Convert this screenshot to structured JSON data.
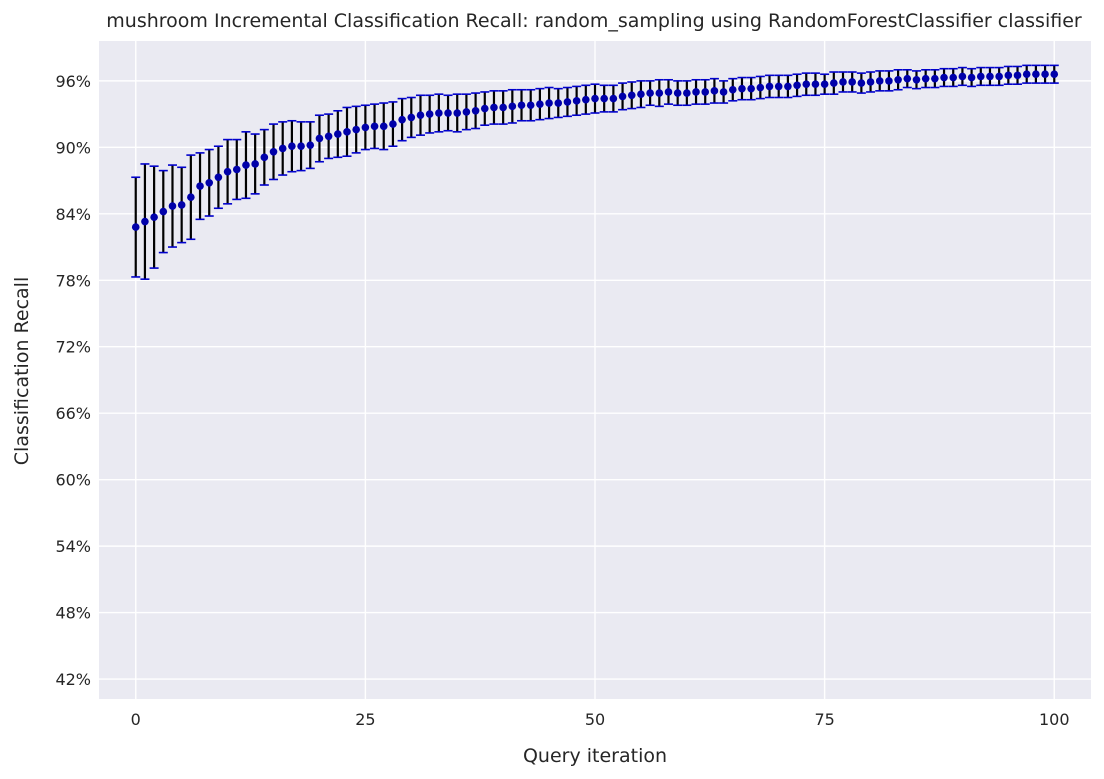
{
  "chart_data": {
    "type": "scatter",
    "title": "mushroom Incremental Classification Recall: random_sampling using RandomForestClassifier classifier",
    "xlabel": "Query iteration",
    "ylabel": "Classification Recall",
    "xlim": [
      -4,
      104
    ],
    "ylim": [
      40.2,
      99.6
    ],
    "x_ticks": [
      0,
      25,
      50,
      75,
      100
    ],
    "y_ticks": [
      42,
      48,
      54,
      60,
      66,
      72,
      78,
      84,
      90,
      96
    ],
    "y_tick_labels": [
      "42%",
      "48%",
      "54%",
      "60%",
      "66%",
      "72%",
      "78%",
      "84%",
      "90%",
      "96%"
    ],
    "grid": true,
    "legend": "none",
    "colors": {
      "background": "#eaeaf2",
      "grid": "#ffffff",
      "point": "#0000aa",
      "errorbar": "#000000",
      "cap": "#0000cc"
    },
    "series": [
      {
        "x": [
          0,
          1,
          2,
          3,
          4,
          5,
          6,
          7,
          8,
          9,
          10,
          11,
          12,
          13,
          14,
          15,
          16,
          17,
          18,
          19,
          20,
          21,
          22,
          23,
          24,
          25,
          26,
          27,
          28,
          29,
          30,
          31,
          32,
          33,
          34,
          35,
          36,
          37,
          38,
          39,
          40,
          41,
          42,
          43,
          44,
          45,
          46,
          47,
          48,
          49,
          50,
          51,
          52,
          53,
          54,
          55,
          56,
          57,
          58,
          59,
          60,
          61,
          62,
          63,
          64,
          65,
          66,
          67,
          68,
          69,
          70,
          71,
          72,
          73,
          74,
          75,
          76,
          77,
          78,
          79,
          80,
          81,
          82,
          83,
          84,
          85,
          86,
          87,
          88,
          89,
          90,
          91,
          92,
          93,
          94,
          95,
          96,
          97,
          98,
          99,
          100
        ],
        "y": [
          82.8,
          83.3,
          83.7,
          84.2,
          84.7,
          84.8,
          85.5,
          86.5,
          86.8,
          87.3,
          87.8,
          88.0,
          88.4,
          88.5,
          89.1,
          89.6,
          89.9,
          90.1,
          90.1,
          90.2,
          90.8,
          91.0,
          91.2,
          91.4,
          91.6,
          91.8,
          91.9,
          91.9,
          92.1,
          92.5,
          92.7,
          92.9,
          93.0,
          93.1,
          93.1,
          93.1,
          93.2,
          93.3,
          93.5,
          93.6,
          93.6,
          93.7,
          93.8,
          93.8,
          93.9,
          94.0,
          94.0,
          94.1,
          94.2,
          94.3,
          94.4,
          94.4,
          94.4,
          94.6,
          94.7,
          94.8,
          94.9,
          94.9,
          95.0,
          94.9,
          94.9,
          95.0,
          95.0,
          95.1,
          95.0,
          95.2,
          95.3,
          95.3,
          95.4,
          95.5,
          95.5,
          95.5,
          95.6,
          95.7,
          95.7,
          95.7,
          95.8,
          95.9,
          95.9,
          95.8,
          95.9,
          96.0,
          96.0,
          96.1,
          96.2,
          96.1,
          96.2,
          96.2,
          96.3,
          96.3,
          96.4,
          96.3,
          96.4,
          96.4,
          96.4,
          96.5,
          96.5,
          96.6,
          96.6,
          96.6,
          96.6
        ],
        "error": [
          4.5,
          5.2,
          4.6,
          3.7,
          3.7,
          3.4,
          3.8,
          3.0,
          3.0,
          2.8,
          2.9,
          2.7,
          3.0,
          2.7,
          2.5,
          2.5,
          2.4,
          2.3,
          2.2,
          2.1,
          2.1,
          2.0,
          2.1,
          2.2,
          2.1,
          2.0,
          2.0,
          2.1,
          2.0,
          1.9,
          1.8,
          1.8,
          1.7,
          1.7,
          1.6,
          1.7,
          1.6,
          1.6,
          1.5,
          1.5,
          1.5,
          1.5,
          1.4,
          1.4,
          1.4,
          1.4,
          1.3,
          1.3,
          1.3,
          1.3,
          1.3,
          1.2,
          1.2,
          1.2,
          1.2,
          1.2,
          1.1,
          1.2,
          1.1,
          1.1,
          1.1,
          1.1,
          1.1,
          1.1,
          1.0,
          1.0,
          1.0,
          1.0,
          1.0,
          1.0,
          1.0,
          1.0,
          1.0,
          1.0,
          1.0,
          0.9,
          1.0,
          0.9,
          0.9,
          0.9,
          0.9,
          0.9,
          0.9,
          0.9,
          0.8,
          0.8,
          0.8,
          0.8,
          0.8,
          0.8,
          0.8,
          0.8,
          0.8,
          0.8,
          0.8,
          0.8,
          0.8,
          0.8,
          0.8,
          0.8,
          0.8
        ]
      }
    ]
  }
}
